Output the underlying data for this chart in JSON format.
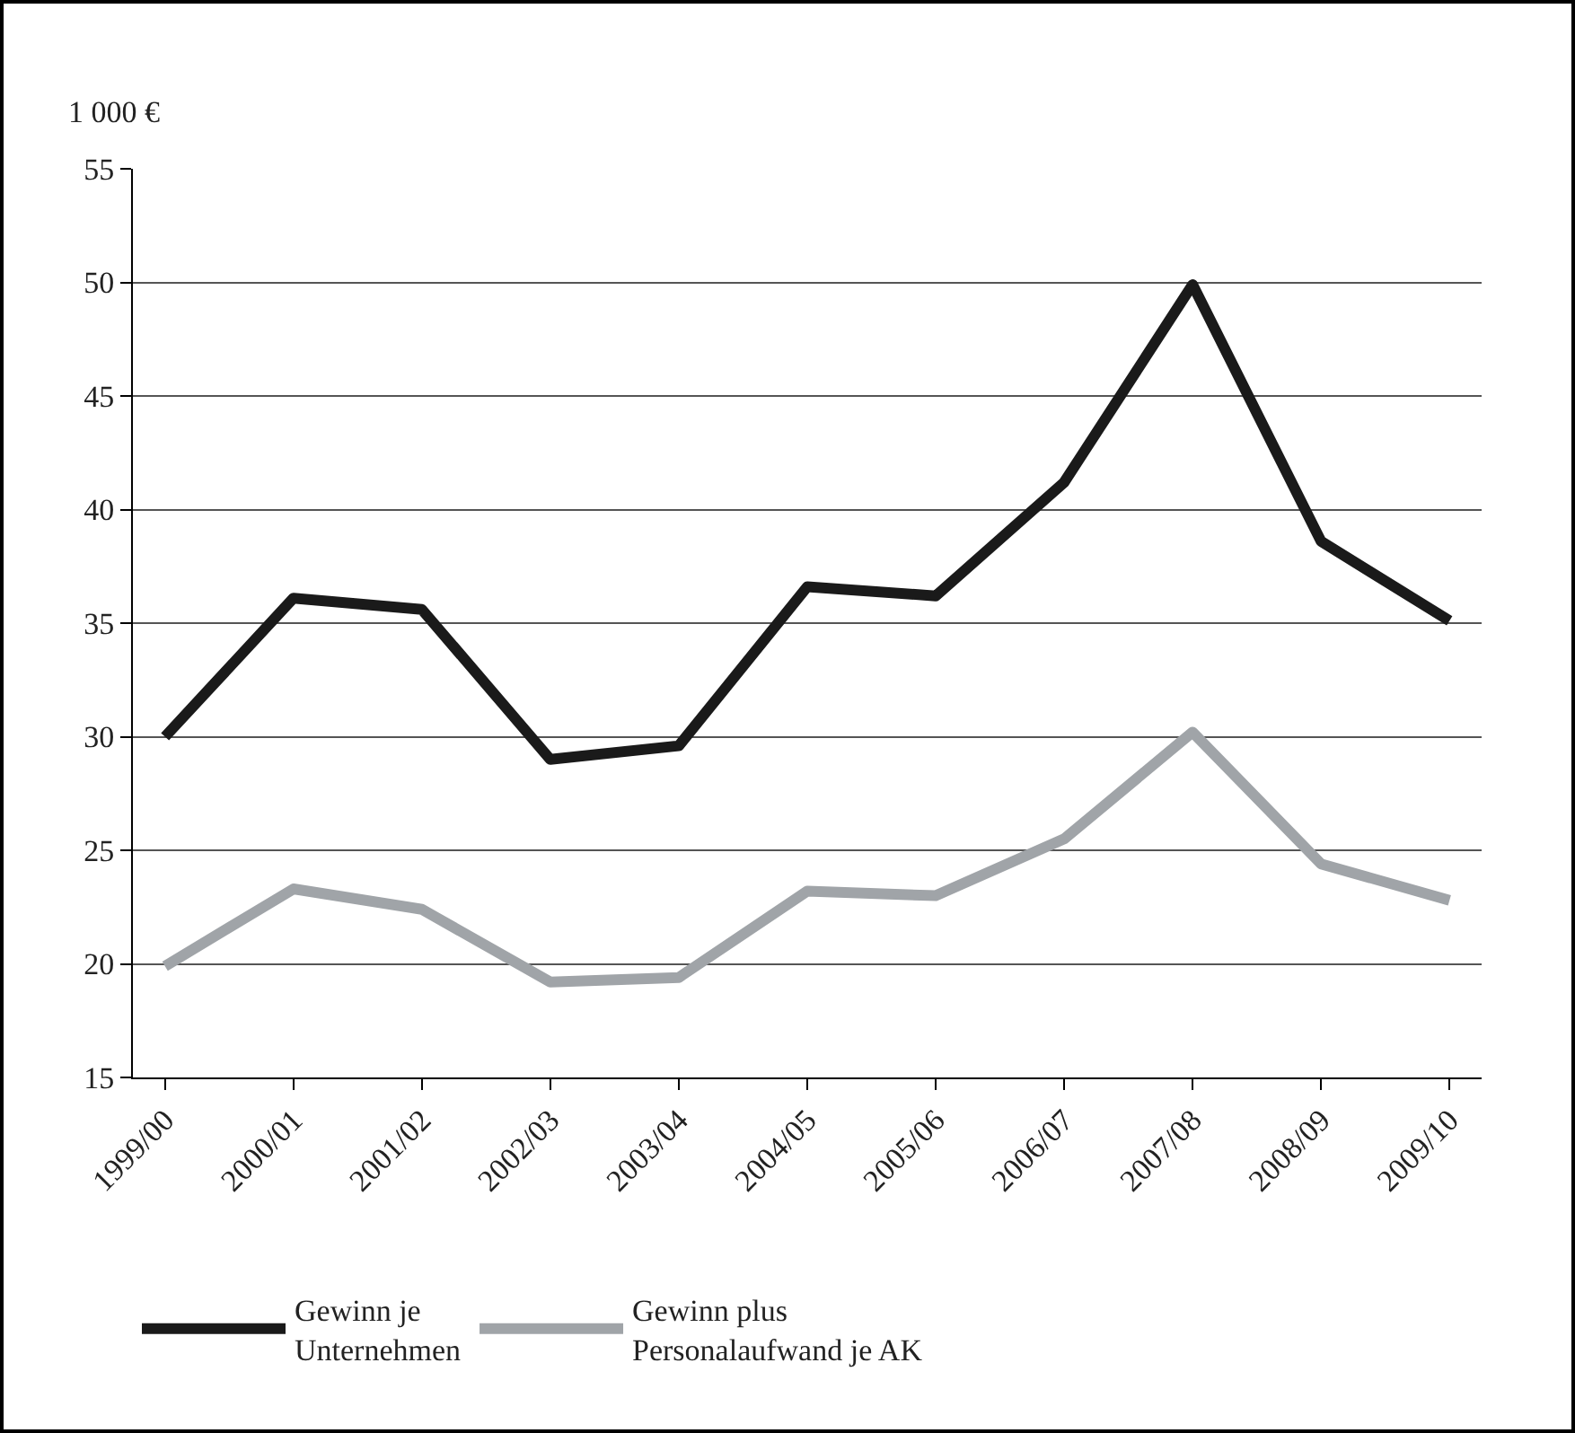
{
  "chart_data": {
    "type": "line",
    "ylabel": "1 000 €",
    "categories": [
      "1999/00",
      "2000/01",
      "2001/02",
      "2002/03",
      "2003/04",
      "2004/05",
      "2005/06",
      "2006/07",
      "2007/08",
      "2008/09",
      "2009/10"
    ],
    "series": [
      {
        "name": "Gewinn je Unternehmen",
        "color": "#1a1a1a",
        "values": [
          30,
          36.1,
          35.6,
          29,
          29.6,
          36.6,
          36.2,
          41.2,
          49.9,
          38.6,
          35.1
        ]
      },
      {
        "name": "Gewinn plus Personalaufwand je AK",
        "color": "#a0a4a8",
        "values": [
          19.9,
          23.3,
          22.4,
          19.2,
          19.4,
          23.2,
          23,
          25.5,
          30.2,
          24.4,
          22.8
        ]
      }
    ],
    "ylim": [
      15,
      55
    ],
    "yticks": [
      15,
      20,
      25,
      30,
      35,
      40,
      45,
      50,
      55
    ],
    "grid": "y",
    "legend": "bottom",
    "marker": "none",
    "line_style": "solid"
  }
}
